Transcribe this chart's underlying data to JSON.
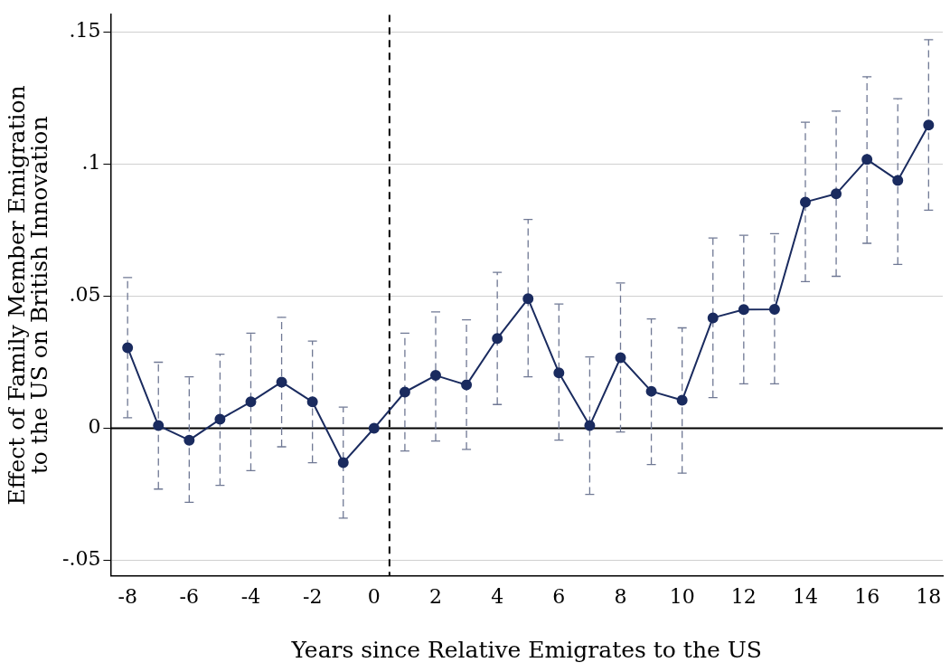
{
  "chart_data": {
    "type": "line",
    "xlabel": "Years since Relative Emigrates to the US",
    "ylabel": "Effect of Family Member Emigration\nto the US on British Innovation",
    "x": [
      -8,
      -7,
      -6,
      -5,
      -4,
      -3,
      -2,
      -1,
      0,
      1,
      2,
      3,
      4,
      5,
      6,
      7,
      8,
      9,
      10,
      11,
      12,
      13,
      14,
      15,
      16,
      17,
      18
    ],
    "series": [
      {
        "color": "#1a2b5f",
        "values": [
          0.0305,
          0.001,
          -0.0045,
          0.0034,
          0.01,
          0.0175,
          0.01,
          -0.013,
          0,
          0.0137,
          0.02,
          0.0164,
          0.034,
          0.049,
          0.021,
          0.001,
          0.0267,
          0.014,
          0.0106,
          0.0418,
          0.0449,
          0.045,
          0.0856,
          0.0887,
          0.1017,
          0.0938,
          0.1147
        ],
        "errors": [
          [
            0.004,
            0.057
          ],
          [
            -0.023,
            0.025
          ],
          [
            -0.028,
            0.0195
          ],
          [
            -0.0216,
            0.028
          ],
          [
            -0.016,
            0.036
          ],
          [
            -0.007,
            0.042
          ],
          [
            -0.013,
            0.033
          ],
          [
            -0.034,
            0.008
          ],
          null,
          [
            -0.0086,
            0.036
          ],
          [
            -0.0048,
            0.044
          ],
          [
            -0.008,
            0.041
          ],
          [
            0.009,
            0.059
          ],
          [
            0.0195,
            0.079
          ],
          [
            -0.0045,
            0.047
          ],
          [
            -0.025,
            0.027
          ],
          [
            -0.0014,
            0.055
          ],
          [
            -0.0137,
            0.0414
          ],
          [
            -0.017,
            0.038
          ],
          [
            0.0116,
            0.072
          ],
          [
            0.0168,
            0.073
          ],
          [
            0.0168,
            0.0736
          ],
          [
            0.0555,
            0.1158
          ],
          [
            0.0575,
            0.12
          ],
          [
            0.07,
            0.133
          ],
          [
            0.062,
            0.1247
          ],
          [
            0.0825,
            0.147
          ]
        ]
      }
    ],
    "xlim": [
      -8.55,
      18.46
    ],
    "xticks": [
      -8,
      -6,
      -4,
      -2,
      0,
      2,
      4,
      6,
      8,
      10,
      12,
      14,
      16,
      18
    ],
    "ylim": [
      -0.0558,
      0.1565
    ],
    "yticks": [
      {
        "value": -0.05,
        "label": "-.05"
      },
      0,
      {
        "value": 0.05,
        "label": ".05"
      },
      {
        "value": 0.1,
        "label": ".1"
      },
      {
        "value": 0.15,
        "label": ".15"
      }
    ],
    "ref_lines": [
      {
        "axis": "y",
        "value": 0,
        "color": "#000000",
        "line_style": "solid"
      },
      {
        "axis": "x",
        "value": 0.5,
        "color": "#000000",
        "line_style": "dashed"
      }
    ],
    "grid": "y",
    "marker": "circle",
    "line_style": "solid",
    "legend": false
  }
}
